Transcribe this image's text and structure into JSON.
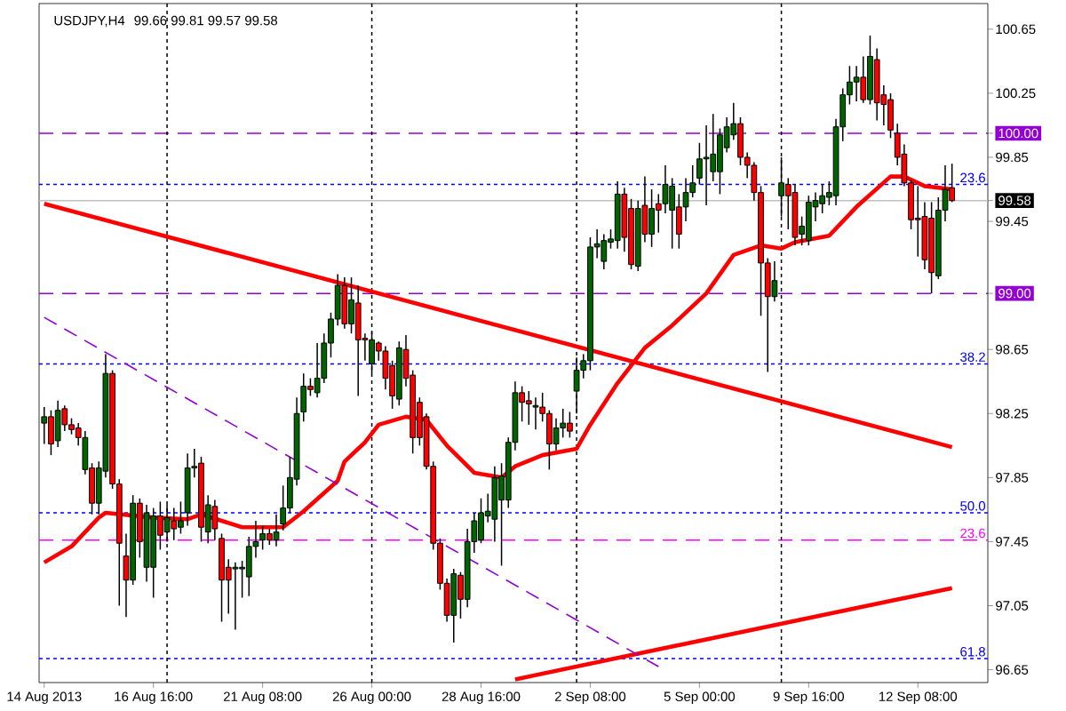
{
  "chart_data": {
    "type": "candlestick",
    "title": "USDJPY,H4",
    "subtitle": "99.66 99.81 99.57 99.58",
    "categories": [
      "14 Aug 2013",
      null,
      null,
      null,
      null,
      null,
      null,
      null,
      null,
      null,
      null,
      null,
      null,
      null,
      null,
      null,
      "16 Aug 16:00",
      null,
      null,
      null,
      null,
      null,
      null,
      null,
      null,
      null,
      null,
      null,
      null,
      null,
      null,
      null,
      "21 Aug 08:00",
      null,
      null,
      null,
      null,
      null,
      null,
      null,
      null,
      null,
      null,
      null,
      null,
      null,
      null,
      null,
      "26 Aug 00:00",
      null,
      null,
      null,
      null,
      null,
      null,
      null,
      null,
      null,
      null,
      null,
      null,
      null,
      null,
      null,
      "28 Aug 16:00",
      null,
      null,
      null,
      null,
      null,
      null,
      null,
      null,
      null,
      null,
      null,
      null,
      null,
      null,
      null,
      "2 Sep 08:00",
      null,
      null,
      null,
      null,
      null,
      null,
      null,
      null,
      null,
      null,
      null,
      null,
      null,
      null,
      null,
      "5 Sep 00:00",
      null,
      null,
      null,
      null,
      null,
      null,
      null,
      null,
      null,
      null,
      null,
      null,
      null,
      null,
      null,
      "9 Sep 16:00",
      null,
      null,
      null,
      null,
      null,
      null,
      null,
      null,
      null,
      null,
      null,
      null,
      null,
      null,
      null,
      "12 Sep 08:00",
      null,
      null,
      null,
      null,
      null
    ],
    "ohlc": [
      [
        98.19,
        98.29,
        98.06,
        98.23
      ],
      [
        98.23,
        98.27,
        97.99,
        98.06
      ],
      [
        98.08,
        98.33,
        98.04,
        98.27
      ],
      [
        98.28,
        98.3,
        98.14,
        98.18
      ],
      [
        98.18,
        98.22,
        98.12,
        98.15
      ],
      [
        98.16,
        98.19,
        98.05,
        98.1
      ],
      [
        97.9,
        98.14,
        97.87,
        98.1
      ],
      [
        97.91,
        97.94,
        97.62,
        97.69
      ],
      [
        97.69,
        97.95,
        97.62,
        97.91
      ],
      [
        97.89,
        98.62,
        97.85,
        98.5
      ],
      [
        98.5,
        98.52,
        97.78,
        97.81
      ],
      [
        97.81,
        97.84,
        97.05,
        97.44
      ],
      [
        97.36,
        97.5,
        96.98,
        97.21
      ],
      [
        97.21,
        97.74,
        97.18,
        97.69
      ],
      [
        97.69,
        97.72,
        97.35,
        97.45
      ],
      [
        97.29,
        97.68,
        97.2,
        97.63
      ],
      [
        97.29,
        97.66,
        97.1,
        97.61
      ],
      [
        97.61,
        97.7,
        97.4,
        97.49
      ],
      [
        97.51,
        97.68,
        97.45,
        97.6
      ],
      [
        97.58,
        97.66,
        97.46,
        97.53
      ],
      [
        97.54,
        97.7,
        97.5,
        97.58
      ],
      [
        97.63,
        98.0,
        97.55,
        97.91
      ],
      [
        97.91,
        98.03,
        97.85,
        97.92
      ],
      [
        97.94,
        97.98,
        97.45,
        97.54
      ],
      [
        97.51,
        97.74,
        97.44,
        97.68
      ],
      [
        97.67,
        97.71,
        97.46,
        97.53
      ],
      [
        97.47,
        97.5,
        96.95,
        97.21
      ],
      [
        97.29,
        97.34,
        97.0,
        97.21
      ],
      [
        97.28,
        97.32,
        96.9,
        97.29
      ],
      [
        97.28,
        97.33,
        97.1,
        97.29
      ],
      [
        97.23,
        97.48,
        97.11,
        97.42
      ],
      [
        97.42,
        97.58,
        97.35,
        97.45
      ],
      [
        97.46,
        97.55,
        97.4,
        97.5
      ],
      [
        97.5,
        97.53,
        97.43,
        97.46
      ],
      [
        97.46,
        97.62,
        97.42,
        97.51
      ],
      [
        97.56,
        97.8,
        97.52,
        97.66
      ],
      [
        97.66,
        97.98,
        97.63,
        97.85
      ],
      [
        97.84,
        98.35,
        97.8,
        98.25
      ],
      [
        98.26,
        98.5,
        98.2,
        98.42
      ],
      [
        98.42,
        98.47,
        98.36,
        98.4
      ],
      [
        98.38,
        98.69,
        98.35,
        98.47
      ],
      [
        98.47,
        98.75,
        98.44,
        98.69
      ],
      [
        98.69,
        98.88,
        98.6,
        98.84
      ],
      [
        98.84,
        99.12,
        98.8,
        99.05
      ],
      [
        99.05,
        99.1,
        98.78,
        98.81
      ],
      [
        98.81,
        99.1,
        98.75,
        98.96
      ],
      [
        98.94,
        99.05,
        98.36,
        98.71
      ],
      [
        98.72,
        98.75,
        98.58,
        98.71
      ],
      [
        98.56,
        98.76,
        98.5,
        98.71
      ],
      [
        98.69,
        98.7,
        98.58,
        98.64
      ],
      [
        98.64,
        98.67,
        98.4,
        98.47
      ],
      [
        98.55,
        98.58,
        98.28,
        98.36
      ],
      [
        98.34,
        98.7,
        98.3,
        98.66
      ],
      [
        98.65,
        98.74,
        98.42,
        98.47
      ],
      [
        98.49,
        98.52,
        98.0,
        98.1
      ],
      [
        98.32,
        98.35,
        98.05,
        98.1
      ],
      [
        98.23,
        98.25,
        97.9,
        97.92
      ],
      [
        97.92,
        97.95,
        97.4,
        97.44
      ],
      [
        97.44,
        97.47,
        97.15,
        97.19
      ],
      [
        97.19,
        97.22,
        96.95,
        96.99
      ],
      [
        96.99,
        97.28,
        96.82,
        97.25
      ],
      [
        97.24,
        97.26,
        96.97,
        97.09
      ],
      [
        97.09,
        97.53,
        97.04,
        97.45
      ],
      [
        97.45,
        97.63,
        97.38,
        97.58
      ],
      [
        97.46,
        97.72,
        97.44,
        97.63
      ],
      [
        97.61,
        97.75,
        97.57,
        97.64
      ],
      [
        97.59,
        97.92,
        97.45,
        97.85
      ],
      [
        97.71,
        97.94,
        97.3,
        97.86
      ],
      [
        97.71,
        98.1,
        97.66,
        98.07
      ],
      [
        98.07,
        98.45,
        98.02,
        98.38
      ],
      [
        98.38,
        98.42,
        98.2,
        98.32
      ],
      [
        98.33,
        98.39,
        98.18,
        98.31
      ],
      [
        98.29,
        98.35,
        98.15,
        98.3
      ],
      [
        98.29,
        98.38,
        98.2,
        98.25
      ],
      [
        98.25,
        98.27,
        97.9,
        98.06
      ],
      [
        98.06,
        98.22,
        98.02,
        98.16
      ],
      [
        98.16,
        98.28,
        98.1,
        98.19
      ],
      [
        98.19,
        98.26,
        98.1,
        98.14
      ],
      [
        98.39,
        98.6,
        98.25,
        98.52
      ],
      [
        98.52,
        98.62,
        98.47,
        98.58
      ],
      [
        98.58,
        99.35,
        98.52,
        99.29
      ],
      [
        99.29,
        99.4,
        99.22,
        99.31
      ],
      [
        99.2,
        99.37,
        99.15,
        99.33
      ],
      [
        99.32,
        99.4,
        99.28,
        99.34
      ],
      [
        99.33,
        99.7,
        99.28,
        99.62
      ],
      [
        99.62,
        99.66,
        99.26,
        99.35
      ],
      [
        99.53,
        99.59,
        99.15,
        99.18
      ],
      [
        99.17,
        99.58,
        99.14,
        99.53
      ],
      [
        99.55,
        99.73,
        99.32,
        99.37
      ],
      [
        99.37,
        99.65,
        99.29,
        99.53
      ],
      [
        99.56,
        99.62,
        99.38,
        99.52
      ],
      [
        99.56,
        99.8,
        99.5,
        99.68
      ],
      [
        99.52,
        99.72,
        99.28,
        99.67
      ],
      [
        99.54,
        99.62,
        99.28,
        99.37
      ],
      [
        99.54,
        99.72,
        99.45,
        99.63
      ],
      [
        99.63,
        99.8,
        99.6,
        99.69
      ],
      [
        99.72,
        99.94,
        99.68,
        99.84
      ],
      [
        99.84,
        100.05,
        99.55,
        99.85
      ],
      [
        99.76,
        100.12,
        99.7,
        99.87
      ],
      [
        99.76,
        100.03,
        99.62,
        99.99
      ],
      [
        99.91,
        100.1,
        99.88,
        100.04
      ],
      [
        99.99,
        100.19,
        99.96,
        100.06
      ],
      [
        100.06,
        100.1,
        99.8,
        99.85
      ],
      [
        99.85,
        99.88,
        99.72,
        99.8
      ],
      [
        99.8,
        99.82,
        99.58,
        99.63
      ],
      [
        99.63,
        99.67,
        98.86,
        99.19
      ],
      [
        99.19,
        99.22,
        98.51,
        98.98
      ],
      [
        98.98,
        99.2,
        98.95,
        99.08
      ],
      [
        99.61,
        99.85,
        99.48,
        99.69
      ],
      [
        99.68,
        99.72,
        99.4,
        99.61
      ],
      [
        99.63,
        99.68,
        99.3,
        99.35
      ],
      [
        99.37,
        99.48,
        99.3,
        99.42
      ],
      [
        99.33,
        99.61,
        99.3,
        99.57
      ],
      [
        99.54,
        99.63,
        99.45,
        99.58
      ],
      [
        99.56,
        99.68,
        99.5,
        99.61
      ],
      [
        99.6,
        99.7,
        99.55,
        99.63
      ],
      [
        99.61,
        100.09,
        99.55,
        100.04
      ],
      [
        100.04,
        100.28,
        99.95,
        100.24
      ],
      [
        100.24,
        100.42,
        100.18,
        100.32
      ],
      [
        100.32,
        100.42,
        100.2,
        100.35
      ],
      [
        100.35,
        100.48,
        100.19,
        100.21
      ],
      [
        100.21,
        100.61,
        100.18,
        100.48
      ],
      [
        100.46,
        100.53,
        100.08,
        100.19
      ],
      [
        100.24,
        100.3,
        100.05,
        100.18
      ],
      [
        100.21,
        100.25,
        99.97,
        100.02
      ],
      [
        100.0,
        100.06,
        99.8,
        99.85
      ],
      [
        99.87,
        99.93,
        99.67,
        99.69
      ],
      [
        99.69,
        99.71,
        99.4,
        99.46
      ],
      [
        99.47,
        99.67,
        99.23,
        99.46
      ],
      [
        99.48,
        99.57,
        99.15,
        99.21
      ],
      [
        99.47,
        99.57,
        99.0,
        99.13
      ],
      [
        99.11,
        99.6,
        99.09,
        99.52
      ],
      [
        99.52,
        99.8,
        99.45,
        99.65
      ],
      [
        99.66,
        99.81,
        99.57,
        99.58
      ]
    ],
    "colors": [
      "#006400",
      "#ff0000",
      "#006400",
      "#ff0000",
      "#ff0000",
      "#ff0000",
      "#006400",
      "#ff0000",
      "#006400",
      "#006400",
      "#ff0000",
      "#ff0000",
      "#ff0000",
      "#006400",
      "#ff0000",
      "#006400",
      "#006400",
      "#ff0000",
      "#006400",
      "#ff0000",
      "#006400",
      "#006400",
      "#006400",
      "#ff0000",
      "#006400",
      "#ff0000",
      "#ff0000",
      "#ff0000",
      "#006400",
      "#006400",
      "#006400",
      "#006400",
      "#006400",
      "#ff0000",
      "#006400",
      "#006400",
      "#006400",
      "#006400",
      "#006400",
      "#ff0000",
      "#006400",
      "#006400",
      "#006400",
      "#006400",
      "#ff0000",
      "#006400",
      "#ff0000",
      "#ff0000",
      "#006400",
      "#ff0000",
      "#ff0000",
      "#ff0000",
      "#006400",
      "#ff0000",
      "#ff0000",
      "#ff0000",
      "#ff0000",
      "#ff0000",
      "#ff0000",
      "#ff0000",
      "#006400",
      "#ff0000",
      "#006400",
      "#006400",
      "#006400",
      "#006400",
      "#006400",
      "#006400",
      "#006400",
      "#006400",
      "#ff0000",
      "#ff0000",
      "#006400",
      "#ff0000",
      "#ff0000",
      "#006400",
      "#006400",
      "#ff0000",
      "#006400",
      "#006400",
      "#006400",
      "#006400",
      "#006400",
      "#006400",
      "#006400",
      "#ff0000",
      "#ff0000",
      "#006400",
      "#ff0000",
      "#006400",
      "#ff0000",
      "#006400",
      "#006400",
      "#ff0000",
      "#006400",
      "#006400",
      "#006400",
      "#006400",
      "#006400",
      "#006400",
      "#006400",
      "#006400",
      "#ff0000",
      "#ff0000",
      "#ff0000",
      "#ff0000",
      "#ff0000",
      "#006400",
      "#006400",
      "#ff0000",
      "#ff0000",
      "#006400",
      "#006400",
      "#006400",
      "#006400",
      "#006400",
      "#006400",
      "#006400",
      "#006400",
      "#006400",
      "#ff0000",
      "#006400",
      "#ff0000",
      "#ff0000",
      "#ff0000",
      "#ff0000",
      "#ff0000",
      "#ff0000",
      "#ff0000",
      "#ff0000",
      "#ff0000",
      "#006400",
      "#006400",
      "#ff0000"
    ],
    "series": [
      {
        "type": "line",
        "color": "#ff0000",
        "line_style": "solid",
        "values": [
          97.32,
          null,
          null,
          null,
          97.42,
          null,
          null,
          null,
          97.6,
          97.63,
          null,
          null,
          null,
          null,
          null,
          null,
          97.6,
          null,
          null,
          null,
          null,
          97.59,
          null,
          97.62,
          null,
          null,
          97.58,
          null,
          null,
          97.54,
          null,
          null,
          null,
          null,
          null,
          97.54,
          null,
          null,
          97.64,
          null,
          null,
          null,
          null,
          97.83,
          97.95,
          null,
          null,
          98.07,
          null,
          98.18,
          null,
          null,
          null,
          98.23,
          null,
          null,
          98.21,
          null,
          null,
          98.05,
          null,
          null,
          null,
          97.88,
          null,
          null,
          null,
          97.85,
          null,
          97.92,
          null,
          null,
          null,
          97.99,
          null,
          null,
          null,
          null,
          98.03,
          null,
          98.18,
          null,
          null,
          null,
          98.44,
          null,
          null,
          null,
          98.66,
          null,
          null,
          null,
          98.8,
          null,
          null,
          null,
          null,
          99.0,
          null,
          null,
          null,
          99.24,
          null,
          null,
          null,
          99.3,
          null,
          null,
          99.28,
          null,
          99.32,
          null,
          null,
          null,
          null,
          99.36,
          null,
          null,
          null,
          99.54,
          null,
          null,
          null,
          null,
          99.73,
          null,
          99.73,
          null,
          null,
          99.67,
          null,
          null,
          null,
          99.65
        ]
      },
      {
        "type": "line",
        "color": "#ff0000",
        "line_style": "solid",
        "values": [
          99.56,
          null,
          null,
          null,
          null,
          null,
          null,
          null,
          null,
          null,
          null,
          null,
          null,
          null,
          null,
          null,
          null,
          null,
          null,
          null,
          null,
          null,
          null,
          null,
          null,
          null,
          null,
          null,
          null,
          null,
          null,
          null,
          null,
          null,
          null,
          null,
          null,
          null,
          null,
          null,
          null,
          null,
          null,
          null,
          null,
          null,
          null,
          null,
          null,
          null,
          null,
          null,
          null,
          null,
          null,
          null,
          null,
          null,
          null,
          null,
          null,
          null,
          null,
          null,
          null,
          null,
          null,
          null,
          null,
          null,
          null,
          null,
          null,
          null,
          null,
          null,
          null,
          null,
          null,
          null,
          null,
          null,
          null,
          null,
          null,
          null,
          null,
          null,
          null,
          null,
          null,
          null,
          null,
          null,
          null,
          null,
          null,
          null,
          null,
          null,
          null,
          null,
          null,
          null,
          null,
          null,
          null,
          null,
          null,
          null,
          null,
          null,
          null,
          null,
          null,
          null,
          null,
          null,
          null,
          null,
          null,
          null,
          null,
          null,
          null,
          null,
          null,
          null,
          null,
          null,
          null,
          null,
          null,
          98.04
        ]
      },
      {
        "type": "line",
        "color": "#ff0000",
        "line_style": "solid",
        "values": [
          null,
          null,
          null,
          null,
          null,
          null,
          null,
          null,
          null,
          null,
          null,
          null,
          null,
          null,
          null,
          null,
          null,
          null,
          null,
          null,
          null,
          null,
          null,
          null,
          null,
          null,
          null,
          null,
          null,
          null,
          null,
          null,
          null,
          null,
          null,
          null,
          null,
          null,
          null,
          null,
          null,
          null,
          null,
          null,
          null,
          null,
          null,
          null,
          null,
          null,
          null,
          null,
          null,
          null,
          null,
          null,
          null,
          null,
          null,
          null,
          null,
          null,
          null,
          null,
          null,
          null,
          null,
          null,
          null,
          96.59,
          null,
          null,
          null,
          null,
          null,
          null,
          null,
          null,
          null,
          null,
          null,
          null,
          null,
          null,
          null,
          null,
          null,
          null,
          null,
          null,
          null,
          null,
          null,
          null,
          null,
          null,
          null,
          null,
          null,
          null,
          null,
          null,
          null,
          null,
          null,
          null,
          null,
          null,
          null,
          null,
          null,
          null,
          null,
          null,
          null,
          null,
          null,
          null,
          null,
          null,
          null,
          null,
          null,
          null,
          null,
          null,
          null,
          null,
          null,
          null,
          null,
          null,
          null,
          97.16
        ]
      },
      {
        "type": "line",
        "color": "#9400d3",
        "line_style": "dashed",
        "values": [
          98.85,
          null,
          null,
          null,
          null,
          null,
          null,
          null,
          null,
          null,
          null,
          null,
          null,
          null,
          null,
          null,
          null,
          null,
          null,
          null,
          null,
          null,
          null,
          null,
          null,
          null,
          null,
          null,
          null,
          null,
          null,
          null,
          null,
          null,
          null,
          null,
          null,
          null,
          null,
          null,
          null,
          null,
          null,
          null,
          null,
          null,
          null,
          null,
          null,
          null,
          null,
          null,
          null,
          null,
          null,
          null,
          null,
          null,
          null,
          null,
          null,
          null,
          null,
          null,
          null,
          null,
          null,
          null,
          null,
          null,
          null,
          null,
          null,
          null,
          null,
          null,
          null,
          null,
          null,
          null,
          null,
          null,
          null,
          null,
          null,
          null,
          null,
          null,
          null,
          null,
          96.67,
          null,
          null,
          null,
          null,
          null,
          null,
          null,
          null,
          null,
          null,
          null,
          null,
          null,
          null,
          null,
          null,
          null,
          null,
          null,
          null,
          null,
          null,
          null,
          null,
          null,
          null,
          null,
          null,
          null,
          null,
          null,
          null,
          null,
          null,
          null,
          null,
          null,
          null,
          null,
          null,
          null,
          null,
          null
        ]
      }
    ],
    "ylim": [
      96.57,
      100.81
    ],
    "yticks": [
      100.65,
      100.25,
      {
        "value": 100.0,
        "label": "100.00"
      },
      99.85,
      {
        "value": 99.58,
        "label": "99.58"
      },
      99.45,
      {
        "value": 99.0,
        "label": "99.00"
      },
      98.65,
      98.25,
      97.85,
      97.45,
      97.05,
      96.65
    ],
    "ref_lines": [
      {
        "axis": "y",
        "value": 100.0,
        "color": "#9400d3",
        "line_style": "dashed"
      },
      {
        "axis": "y",
        "value": 99.0,
        "color": "#9400d3",
        "line_style": "dashed"
      },
      {
        "axis": "y",
        "value": 99.58,
        "color": "#c0c0c0",
        "line_style": "solid"
      },
      {
        "axis": "y",
        "value": 99.68,
        "color": "#0000ff",
        "line_style": "dotted"
      },
      {
        "axis": "y",
        "value": 98.56,
        "color": "#0000ff",
        "line_style": "dotted"
      },
      {
        "axis": "y",
        "value": 97.63,
        "color": "#0000ff",
        "line_style": "dotted"
      },
      {
        "axis": "y",
        "value": 96.72,
        "color": "#0000ff",
        "line_style": "dotted"
      },
      {
        "axis": "y",
        "value": 97.46,
        "color": "#ff00ff",
        "line_style": "dashed"
      }
    ],
    "annotations": [
      {
        "text": "23.6",
        "y": 99.68
      },
      {
        "text": "38.2",
        "y": 98.56
      },
      {
        "text": "50.0",
        "y": 97.63
      },
      {
        "text": "61.8",
        "y": 96.72
      },
      {
        "text": "23.6",
        "y": 97.46
      }
    ]
  }
}
